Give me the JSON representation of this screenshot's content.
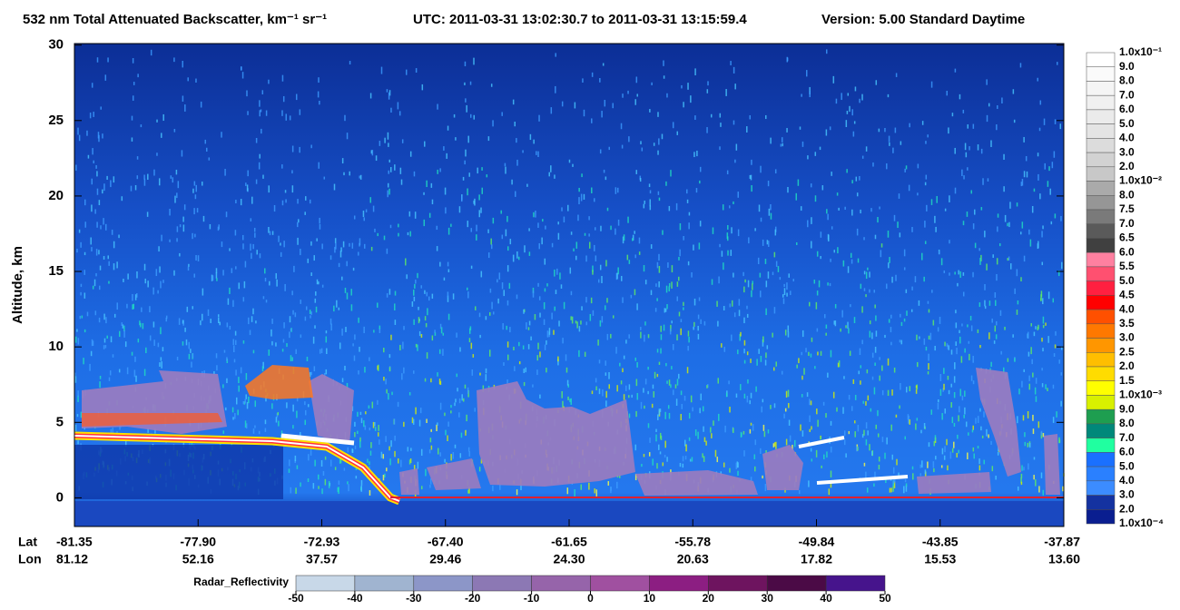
{
  "chart_data": {
    "type": "heatmap",
    "title": "532 nm Total Attenuated Backscatter, km⁻¹ sr⁻¹",
    "utc": "UTC:  2011-03-31 13:02:30.7  to  2011-03-31 13:15:59.4",
    "version": "Version: 5.00  Standard  Daytime",
    "ylabel": "Altitude, km",
    "ylim": [
      -1.9,
      30.1
    ],
    "yticks": [
      0,
      5,
      10,
      15,
      20,
      25,
      30
    ],
    "x_row_labels": [
      "Lat",
      "Lon"
    ],
    "lat": [
      "-81.35",
      "-77.90",
      "-72.93",
      "-67.40",
      "-61.65",
      "-55.78",
      "-49.84",
      "-43.85",
      "-37.87"
    ],
    "lon": [
      "81.12",
      "52.16",
      "37.57",
      "29.46",
      "24.30",
      "20.63",
      "17.82",
      "15.53",
      "13.60"
    ],
    "colorbar": {
      "labels": [
        "1.0x10⁻¹",
        "9.0",
        "8.0",
        "7.0",
        "6.0",
        "5.0",
        "4.0",
        "3.0",
        "2.0",
        "1.0x10⁻²",
        "8.0",
        "7.5",
        "7.0",
        "6.5",
        "6.0",
        "5.5",
        "5.0",
        "4.5",
        "4.0",
        "3.5",
        "3.0",
        "2.5",
        "2.0",
        "1.5",
        "1.0x10⁻³",
        "9.0",
        "8.0",
        "7.0",
        "6.0",
        "5.0",
        "4.0",
        "3.0",
        "2.0",
        "1.0x10⁻⁴"
      ],
      "colors": [
        "#ffffff",
        "#fafafa",
        "#f5f5f5",
        "#f0f0f0",
        "#ebebeb",
        "#e4e4e4",
        "#dcdcdc",
        "#d2d2d2",
        "#c8c8c8",
        "#aaaaaa",
        "#969696",
        "#7a7a7a",
        "#5a5a5a",
        "#404040",
        "#ff80a0",
        "#ff5070",
        "#ff2040",
        "#ff0000",
        "#ff5000",
        "#ff7800",
        "#ff9600",
        "#ffbe00",
        "#ffdc00",
        "#ffff00",
        "#d8f000",
        "#1e9e50",
        "#00887a",
        "#20ffa0",
        "#1a70ff",
        "#2a80ff",
        "#3c8cff",
        "#1432a0",
        "#0a1e90"
      ]
    },
    "radar_colorbar": {
      "label": "Radar_Reflectivity",
      "ticks": [
        -50,
        -40,
        -30,
        -20,
        -10,
        0,
        10,
        20,
        30,
        40,
        50
      ],
      "colors": [
        "#c8d8e8",
        "#a0b4d0",
        "#8c96c8",
        "#8c78b4",
        "#9664aa",
        "#a050a0",
        "#8c1e82",
        "#6e145f",
        "#4b0a46",
        "#46148c"
      ]
    }
  }
}
